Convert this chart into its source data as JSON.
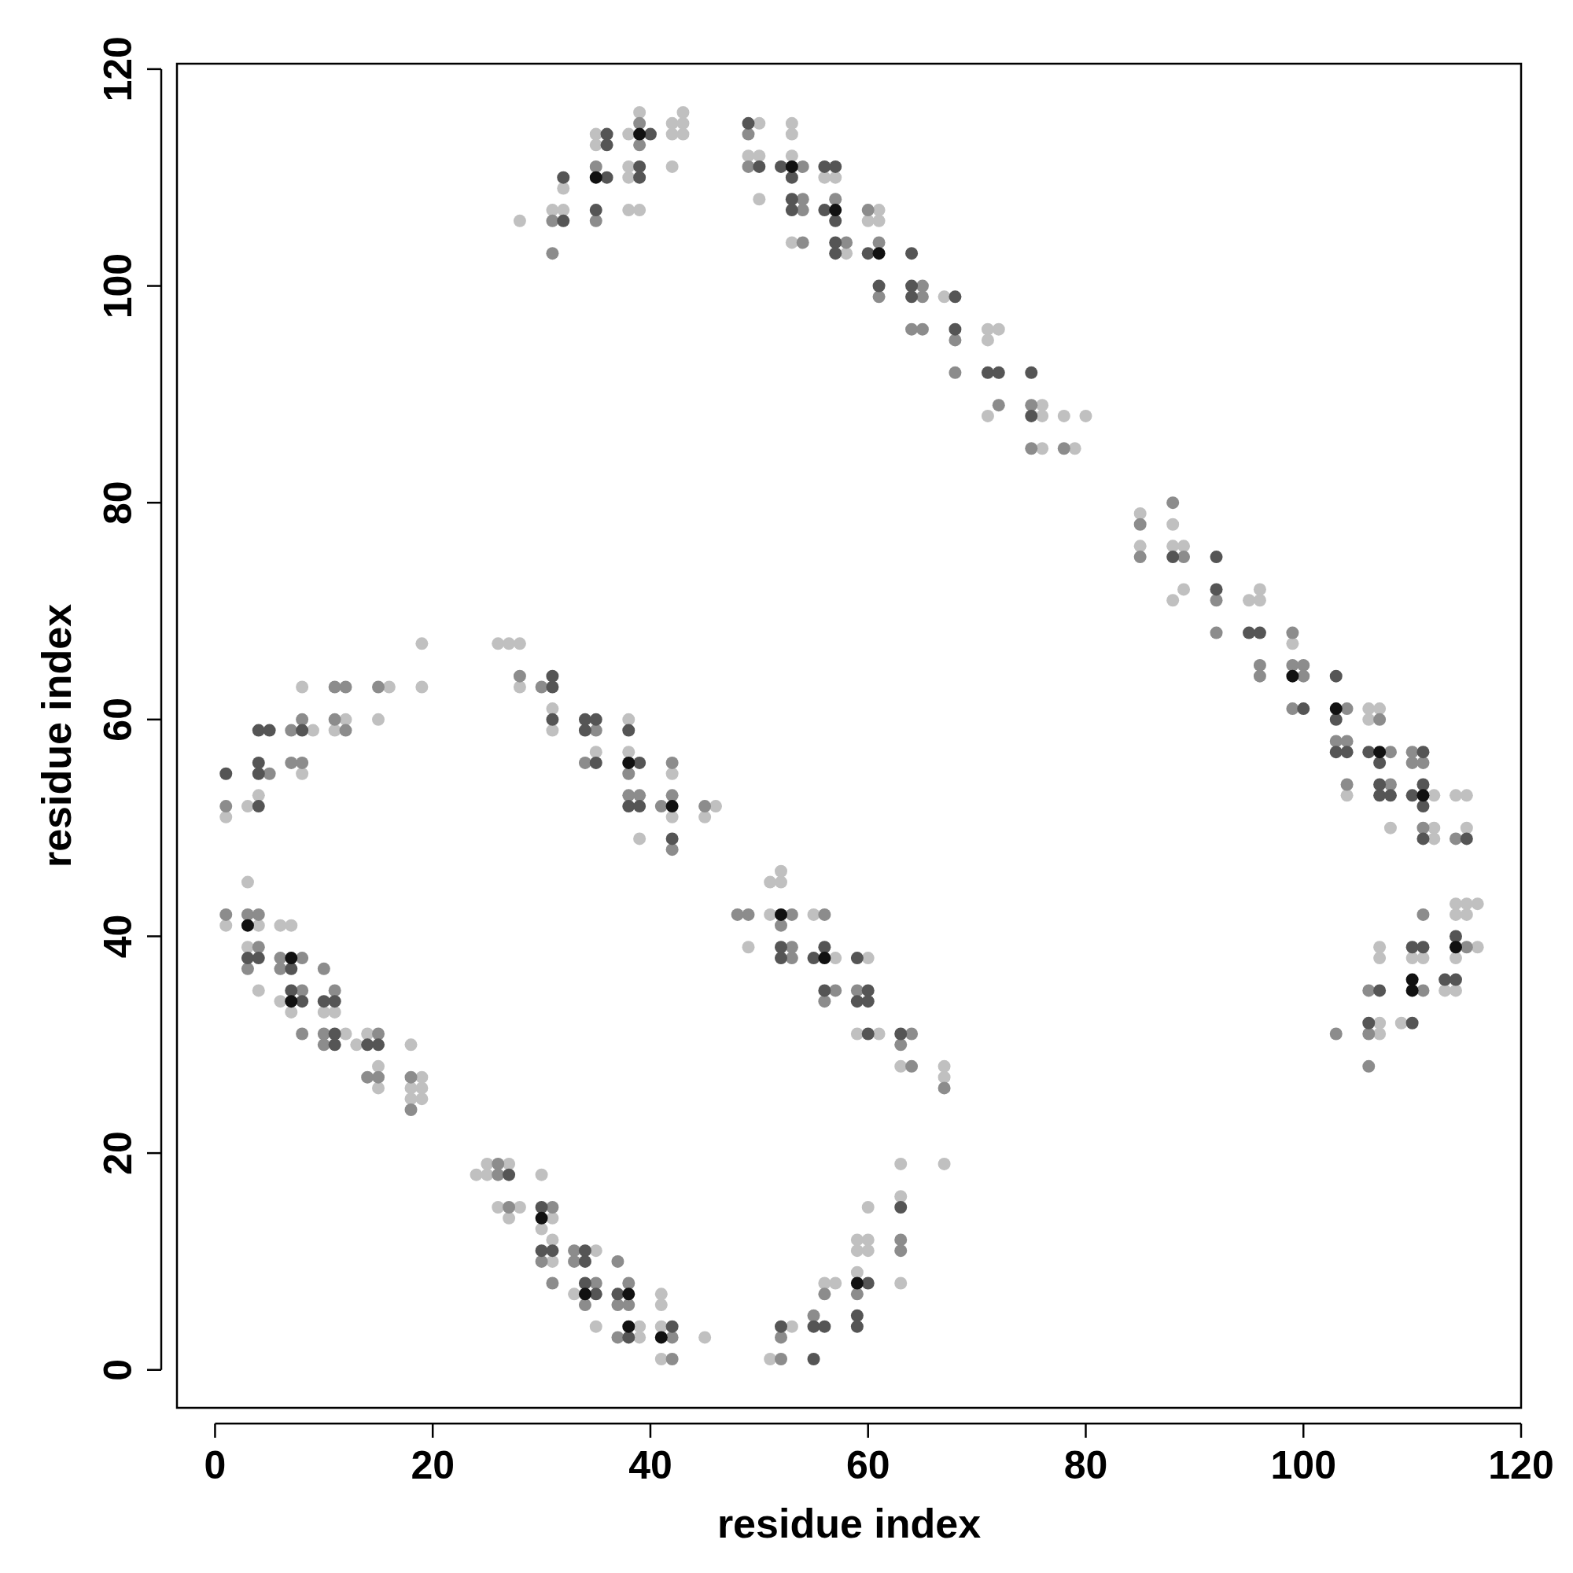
{
  "chart_data": {
    "type": "scatter",
    "xlabel": "residue index",
    "ylabel": "residue index",
    "xlim": [
      -3.5,
      120
    ],
    "ylim": [
      -3.5,
      120.5
    ],
    "xticks": [
      0,
      20,
      40,
      60,
      80,
      100,
      120
    ],
    "yticks": [
      0,
      20,
      40,
      60,
      80,
      100,
      120
    ],
    "marker": "circle",
    "series": [
      {
        "color": "#c0c0c0",
        "x": [
          28,
          31,
          32,
          32,
          35,
          35,
          38,
          38,
          38,
          38,
          39,
          39,
          42,
          42,
          42,
          43,
          43,
          43,
          49,
          50,
          50,
          50,
          53,
          53,
          53,
          53,
          56,
          57,
          58,
          60,
          61,
          61,
          67,
          71,
          71,
          71,
          72,
          76,
          76,
          76,
          78,
          79,
          80,
          85,
          85,
          88,
          88,
          88,
          89,
          89,
          95,
          96,
          96,
          99,
          104,
          106,
          106,
          107,
          108,
          112,
          112,
          112,
          114,
          115,
          115,
          107,
          107,
          107,
          107,
          109,
          110,
          111,
          113,
          114,
          114,
          114,
          114,
          115,
          115,
          116,
          116,
          1,
          3,
          4,
          8,
          8,
          9,
          11,
          12,
          15,
          16,
          19,
          19,
          1,
          3,
          3,
          4,
          4,
          6,
          6,
          7,
          7,
          10,
          11,
          12,
          13,
          14,
          15,
          15,
          18,
          18,
          18,
          19,
          19,
          19,
          26,
          27,
          28,
          28,
          31,
          31,
          35,
          38,
          38,
          39,
          42,
          42,
          45,
          46,
          49,
          51,
          51,
          52,
          52,
          55,
          57,
          59,
          60,
          61,
          63,
          67,
          67,
          67,
          24,
          25,
          25,
          26,
          27,
          27,
          28,
          30,
          30,
          31,
          31,
          31,
          33,
          35,
          35,
          39,
          39,
          41,
          41,
          41,
          41,
          45,
          51,
          53,
          56,
          57,
          59,
          59,
          59,
          60,
          60,
          60,
          63,
          63,
          63
        ],
        "values": [
          106,
          107,
          109,
          107,
          114,
          113,
          114,
          111,
          110,
          107,
          116,
          107,
          115,
          114,
          111,
          116,
          115,
          114,
          112,
          115,
          112,
          108,
          115,
          114,
          112,
          104,
          110,
          110,
          103,
          106,
          107,
          106,
          99,
          96,
          95,
          88,
          96,
          89,
          88,
          85,
          88,
          85,
          88,
          79,
          76,
          78,
          76,
          71,
          76,
          72,
          71,
          72,
          71,
          67,
          53,
          61,
          60,
          61,
          50,
          53,
          50,
          49,
          53,
          53,
          50,
          39,
          38,
          32,
          31,
          32,
          38,
          38,
          35,
          43,
          42,
          38,
          35,
          43,
          42,
          43,
          39,
          51,
          52,
          53,
          63,
          55,
          59,
          59,
          60,
          60,
          63,
          67,
          63,
          41,
          45,
          39,
          41,
          35,
          41,
          34,
          41,
          33,
          33,
          33,
          31,
          30,
          31,
          28,
          26,
          30,
          26,
          25,
          27,
          26,
          25,
          67,
          67,
          67,
          63,
          61,
          59,
          57,
          60,
          57,
          49,
          55,
          51,
          51,
          52,
          39,
          45,
          42,
          46,
          45,
          42,
          38,
          31,
          38,
          31,
          28,
          28,
          27,
          19,
          18,
          19,
          18,
          15,
          19,
          14,
          15,
          18,
          13,
          14,
          12,
          10,
          7,
          11,
          4,
          4,
          3,
          7,
          6,
          4,
          1,
          3,
          1,
          4,
          8,
          8,
          12,
          11,
          9,
          15,
          12,
          11,
          19,
          16,
          8
        ]
      },
      {
        "color": "#8c8c8c",
        "x": [
          31,
          31,
          35,
          35,
          39,
          39,
          49,
          49,
          54,
          54,
          54,
          54,
          57,
          58,
          60,
          61,
          61,
          64,
          65,
          65,
          65,
          68,
          68,
          72,
          75,
          75,
          78,
          85,
          85,
          88,
          89,
          92,
          92,
          96,
          96,
          99,
          99,
          99,
          100,
          100,
          103,
          104,
          104,
          104,
          107,
          108,
          108,
          110,
          110,
          111,
          111,
          114,
          103,
          106,
          106,
          106,
          111,
          111,
          115,
          1,
          5,
          7,
          7,
          8,
          8,
          11,
          11,
          12,
          12,
          15,
          1,
          3,
          3,
          4,
          4,
          6,
          6,
          8,
          8,
          8,
          10,
          10,
          10,
          11,
          14,
          15,
          15,
          18,
          18,
          28,
          30,
          34,
          35,
          38,
          38,
          39,
          41,
          42,
          42,
          42,
          45,
          48,
          49,
          52,
          53,
          53,
          53,
          56,
          56,
          57,
          59,
          63,
          64,
          64,
          67,
          26,
          26,
          27,
          30,
          31,
          31,
          33,
          33,
          34,
          35,
          37,
          37,
          37,
          38,
          38,
          42,
          42,
          52,
          52,
          55,
          56,
          59,
          63,
          63
        ],
        "values": [
          106,
          103,
          111,
          106,
          115,
          113,
          114,
          111,
          111,
          108,
          107,
          104,
          108,
          104,
          107,
          104,
          99,
          96,
          100,
          99,
          96,
          95,
          92,
          89,
          89,
          85,
          85,
          78,
          75,
          80,
          75,
          71,
          68,
          65,
          64,
          68,
          65,
          61,
          65,
          64,
          58,
          61,
          58,
          54,
          60,
          57,
          54,
          57,
          56,
          56,
          50,
          49,
          31,
          35,
          31,
          28,
          42,
          35,
          39,
          52,
          55,
          59,
          56,
          60,
          56,
          63,
          60,
          63,
          59,
          63,
          42,
          42,
          37,
          42,
          39,
          38,
          37,
          38,
          35,
          31,
          37,
          31,
          30,
          35,
          27,
          31,
          27,
          27,
          24,
          64,
          63,
          56,
          59,
          55,
          53,
          53,
          52,
          56,
          53,
          48,
          52,
          42,
          42,
          41,
          42,
          39,
          38,
          42,
          34,
          35,
          35,
          30,
          31,
          28,
          26,
          19,
          18,
          15,
          10,
          15,
          8,
          11,
          10,
          6,
          8,
          10,
          6,
          3,
          8,
          6,
          3,
          1,
          3,
          1,
          5,
          7,
          7,
          12,
          11
        ]
      },
      {
        "color": "#555555",
        "x": [
          49,
          50,
          52,
          53,
          53,
          53,
          56,
          56,
          57,
          57,
          57,
          57,
          60,
          61,
          64,
          64,
          64,
          68,
          68,
          71,
          72,
          75,
          75,
          88,
          92,
          92,
          95,
          96,
          100,
          103,
          103,
          103,
          104,
          106,
          107,
          107,
          107,
          108,
          110,
          111,
          111,
          111,
          111,
          115,
          106,
          107,
          110,
          110,
          111,
          113,
          114,
          114
        ],
        "values": [
          115,
          111,
          111,
          110,
          108,
          107,
          111,
          107,
          111,
          106,
          104,
          103,
          103,
          100,
          103,
          100,
          99,
          99,
          96,
          92,
          92,
          92,
          88,
          75,
          75,
          72,
          68,
          68,
          61,
          64,
          60,
          57,
          57,
          57,
          56,
          54,
          53,
          53,
          53,
          57,
          54,
          52,
          49,
          49,
          32,
          35,
          39,
          32,
          39,
          36,
          40,
          36
        ]
      },
      {
        "color": "#555555",
        "x": [
          1,
          4,
          4,
          4,
          4,
          5,
          8,
          3,
          4,
          7,
          7,
          8,
          10,
          11,
          11,
          11,
          14,
          15,
          31,
          31,
          31,
          34,
          34,
          35,
          35,
          38,
          38,
          39,
          39,
          42,
          52,
          52,
          55,
          56,
          56,
          59,
          59,
          60,
          60,
          60,
          63,
          27,
          30,
          30,
          31,
          34,
          34,
          34,
          35,
          37,
          38,
          42,
          52,
          55,
          55,
          56,
          59,
          59,
          60,
          63,
          32,
          32,
          35,
          36,
          36,
          36,
          39,
          39,
          40
        ],
        "values": [
          55,
          59,
          56,
          55,
          52,
          59,
          59,
          38,
          38,
          37,
          35,
          34,
          34,
          34,
          31,
          30,
          30,
          30,
          64,
          63,
          60,
          60,
          59,
          60,
          56,
          59,
          52,
          56,
          52,
          49,
          39,
          38,
          38,
          39,
          35,
          38,
          34,
          35,
          34,
          31,
          31,
          18,
          15,
          11,
          11,
          11,
          10,
          8,
          7,
          7,
          3,
          4,
          4,
          4,
          1,
          4,
          5,
          4,
          8,
          15,
          110,
          106,
          107,
          114,
          113,
          110,
          111,
          110,
          114
        ]
      },
      {
        "color": "#111111",
        "x": [
          35,
          39,
          53,
          57,
          61,
          99,
          103,
          107,
          111,
          110,
          110,
          114,
          3,
          7,
          7,
          38,
          42,
          52,
          56,
          30,
          34,
          38,
          38,
          41,
          59
        ],
        "values": [
          110,
          114,
          111,
          107,
          103,
          64,
          61,
          57,
          53,
          36,
          35,
          39,
          41,
          38,
          34,
          56,
          52,
          42,
          38,
          14,
          7,
          7,
          4,
          3,
          8
        ]
      }
    ]
  }
}
